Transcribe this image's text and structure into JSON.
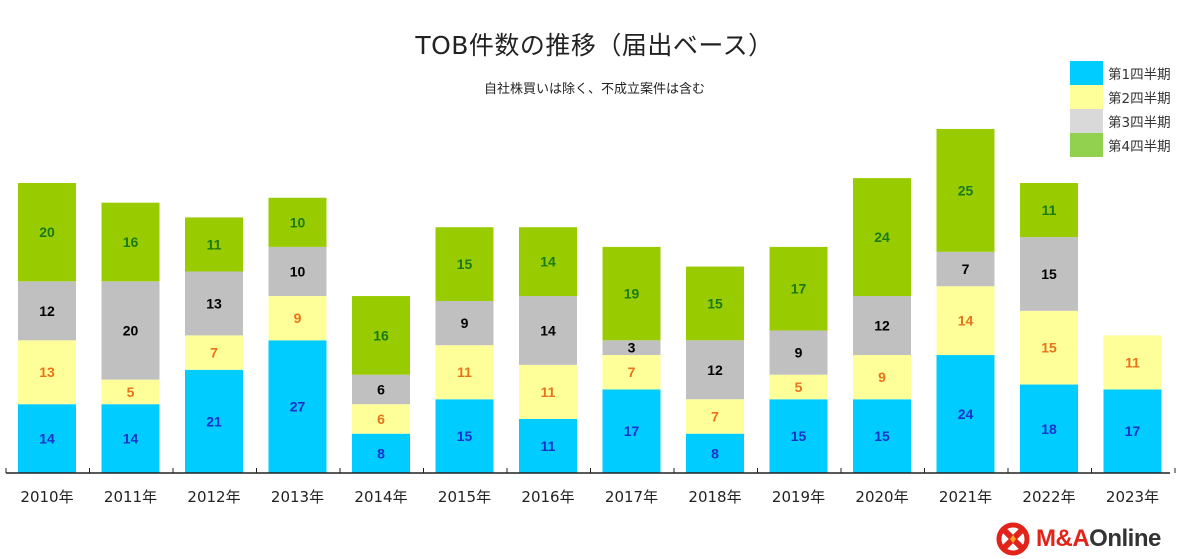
{
  "chart_data": {
    "type": "bar",
    "stacked": true,
    "title": "TOB件数の推移（届出ベース）",
    "subtitle": "自社株買いは除く、不成立案件は含む",
    "xlabel": "",
    "ylabel": "",
    "ylim": [
      0,
      80
    ],
    "grid": false,
    "legend_position": "top-right",
    "categories": [
      "2010年",
      "2011年",
      "2012年",
      "2013年",
      "2014年",
      "2015年",
      "2016年",
      "2017年",
      "2018年",
      "2019年",
      "2020年",
      "2021年",
      "2022年",
      "2023年"
    ],
    "series": [
      {
        "name": "第1四半期",
        "color": "#00ccff",
        "label_color": "#1a33cc",
        "values": [
          14,
          14,
          21,
          27,
          8,
          15,
          11,
          17,
          8,
          15,
          15,
          24,
          18,
          17
        ]
      },
      {
        "name": "第2四半期",
        "color": "#ffff99",
        "label_color": "#e8731a",
        "values": [
          13,
          5,
          7,
          9,
          6,
          11,
          11,
          7,
          7,
          5,
          9,
          14,
          15,
          11
        ]
      },
      {
        "name": "第3四半期",
        "color": "#c0c0c0",
        "label_color": "#000000",
        "values": [
          12,
          20,
          13,
          10,
          6,
          9,
          14,
          3,
          12,
          9,
          12,
          7,
          15,
          null
        ]
      },
      {
        "name": "第4四半期",
        "color": "#99cc00",
        "label_color": "#1a7a1a",
        "values": [
          20,
          16,
          11,
          10,
          16,
          15,
          14,
          19,
          15,
          17,
          24,
          25,
          11,
          null
        ]
      }
    ]
  },
  "legend_colors": [
    "#00ccff",
    "#ffff99",
    "#d9d9d9",
    "#92d050"
  ],
  "logo": {
    "text_mark": "M&A",
    "text_rest": "Online",
    "color": "#e2231a"
  }
}
